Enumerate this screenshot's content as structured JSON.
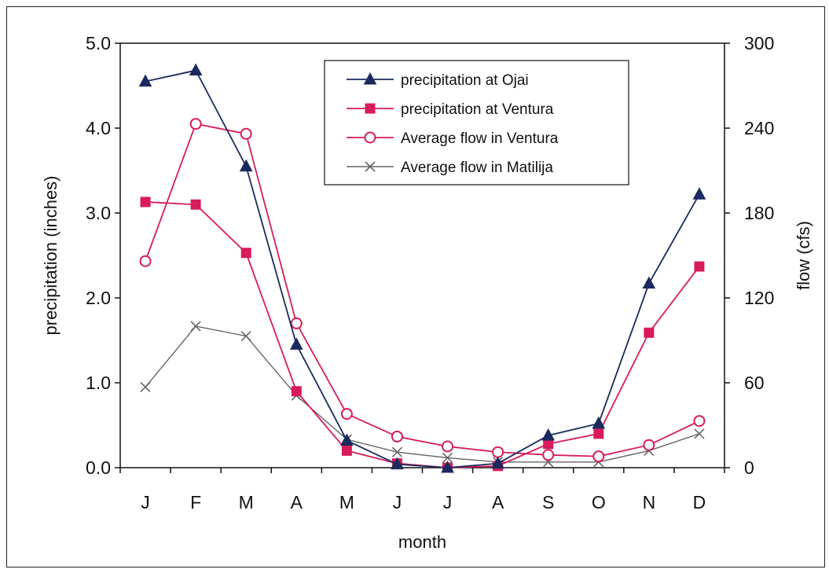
{
  "chart_data": {
    "type": "line",
    "xlabel": "month",
    "ylabel": "precipitation (inches)",
    "y2label": "flow (cfs)",
    "categories": [
      "J",
      "F",
      "M",
      "A",
      "M",
      "J",
      "J",
      "A",
      "S",
      "O",
      "N",
      "D"
    ],
    "ylim": [
      0,
      5
    ],
    "y2lim": [
      0,
      300
    ],
    "yticks": [
      "0.0",
      "1.0",
      "2.0",
      "3.0",
      "4.0",
      "5.0"
    ],
    "y2ticks": [
      "0",
      "60",
      "120",
      "180",
      "240",
      "300"
    ],
    "grid": false,
    "legend_position": "top-center",
    "series": [
      {
        "name": "precipitation at Ojai",
        "axis": "left",
        "marker": "filled-triangle",
        "color": "#1a2a5e",
        "values": [
          4.55,
          4.68,
          3.55,
          1.45,
          0.32,
          0.04,
          0.0,
          0.05,
          0.38,
          0.52,
          2.17,
          3.22
        ]
      },
      {
        "name": "precipitation at Ventura",
        "axis": "left",
        "marker": "filled-square",
        "color": "#d81b5a",
        "values": [
          3.13,
          3.1,
          2.53,
          0.9,
          0.2,
          0.05,
          0.0,
          0.02,
          0.28,
          0.4,
          1.59,
          2.37
        ]
      },
      {
        "name": "Average flow in Ventura",
        "axis": "right",
        "marker": "open-circle",
        "color": "#d81b5a",
        "values": [
          146,
          243,
          236,
          102,
          38,
          22,
          15,
          11,
          9,
          8,
          16,
          33
        ]
      },
      {
        "name": "Average flow in Matilija",
        "axis": "right",
        "marker": "x",
        "color": "#666666",
        "values": [
          57,
          100,
          93,
          51,
          20,
          11,
          7,
          4,
          4,
          4,
          12,
          24
        ]
      }
    ]
  }
}
